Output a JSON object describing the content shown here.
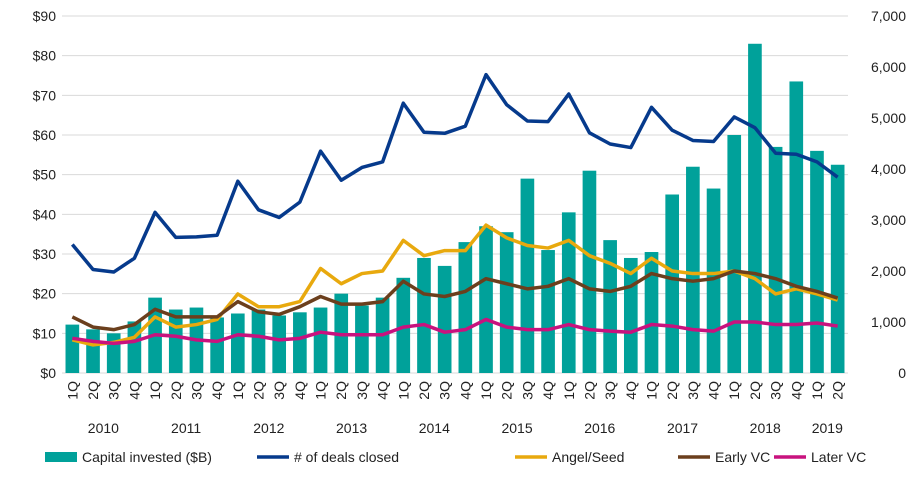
{
  "chart_data": {
    "type": "bar+line",
    "title": "",
    "xlabel": "",
    "ylabel": "",
    "y2label": "",
    "quarters": [
      "1Q",
      "2Q",
      "3Q",
      "4Q",
      "1Q",
      "2Q",
      "3Q",
      "4Q",
      "1Q",
      "2Q",
      "3Q",
      "4Q",
      "1Q",
      "2Q",
      "3Q",
      "4Q",
      "1Q",
      "2Q",
      "3Q",
      "4Q",
      "1Q",
      "2Q",
      "3Q",
      "4Q",
      "1Q",
      "2Q",
      "3Q",
      "4Q",
      "1Q",
      "2Q",
      "3Q",
      "4Q",
      "1Q",
      "2Q",
      "3Q",
      "4Q",
      "1Q",
      "2Q"
    ],
    "years": [
      "2010",
      "2011",
      "2012",
      "2013",
      "2014",
      "2015",
      "2016",
      "2017",
      "2018",
      "2019"
    ],
    "ylim": [
      0,
      90
    ],
    "y_ticks": [
      "$0",
      "$10",
      "$20",
      "$30",
      "$40",
      "$50",
      "$60",
      "$70",
      "$80",
      "$90"
    ],
    "y2lim": [
      0,
      7000
    ],
    "y2_ticks": [
      "0",
      "1,000",
      "2,000",
      "3,000",
      "4,000",
      "5,000",
      "6,000",
      "7,000"
    ],
    "grid": true,
    "legend_placement": "bottom",
    "bars": {
      "name": "Capital invested ($B)",
      "color": "#00a19a",
      "axis": "left",
      "values": [
        12.2,
        11,
        10,
        13,
        19,
        16,
        16.5,
        14,
        15,
        16,
        14.5,
        15.3,
        16.5,
        20,
        17,
        19,
        24,
        29,
        27,
        33,
        37,
        35.5,
        49,
        31,
        40.5,
        51,
        33.5,
        29,
        30.5,
        45,
        52,
        46.5,
        60,
        83,
        57,
        73.5,
        56,
        52.5
      ]
    },
    "series": [
      {
        "name": "# of deals closed",
        "color": "#063a8c",
        "axis": "right",
        "values": [
          2520,
          2030,
          1980,
          2250,
          3150,
          2660,
          2670,
          2700,
          3760,
          3200,
          3050,
          3350,
          4350,
          3780,
          4030,
          4140,
          5290,
          4720,
          4700,
          4840,
          5850,
          5260,
          4940,
          4930,
          5470,
          4710,
          4490,
          4420,
          5210,
          4760,
          4560,
          4540,
          5020,
          4810,
          4310,
          4290,
          4140,
          3840
        ]
      },
      {
        "name": "Angel/Seed",
        "color": "#e8a90e",
        "axis": "right",
        "values": [
          650,
          550,
          600,
          700,
          1100,
          900,
          950,
          1050,
          1550,
          1300,
          1300,
          1400,
          2050,
          1750,
          1950,
          2000,
          2600,
          2300,
          2400,
          2400,
          2900,
          2650,
          2500,
          2450,
          2600,
          2300,
          2150,
          1950,
          2250,
          2000,
          1950,
          1950,
          2000,
          1850,
          1550,
          1650,
          1550,
          1430
        ]
      },
      {
        "name": "Early VC",
        "color": "#6b3f1d",
        "axis": "right",
        "values": [
          1100,
          900,
          850,
          950,
          1250,
          1100,
          1100,
          1100,
          1400,
          1200,
          1150,
          1300,
          1500,
          1350,
          1350,
          1400,
          1800,
          1550,
          1500,
          1600,
          1850,
          1750,
          1650,
          1700,
          1850,
          1650,
          1600,
          1700,
          1950,
          1850,
          1800,
          1850,
          2000,
          1950,
          1850,
          1700,
          1600,
          1470
        ]
      },
      {
        "name": "Later VC",
        "color": "#c8127e",
        "axis": "right",
        "values": [
          680,
          620,
          580,
          620,
          750,
          720,
          650,
          620,
          750,
          720,
          650,
          680,
          800,
          750,
          750,
          750,
          900,
          950,
          800,
          850,
          1050,
          900,
          850,
          850,
          950,
          850,
          820,
          800,
          950,
          920,
          850,
          820,
          1000,
          1000,
          950,
          950,
          980,
          920
        ]
      }
    ]
  }
}
